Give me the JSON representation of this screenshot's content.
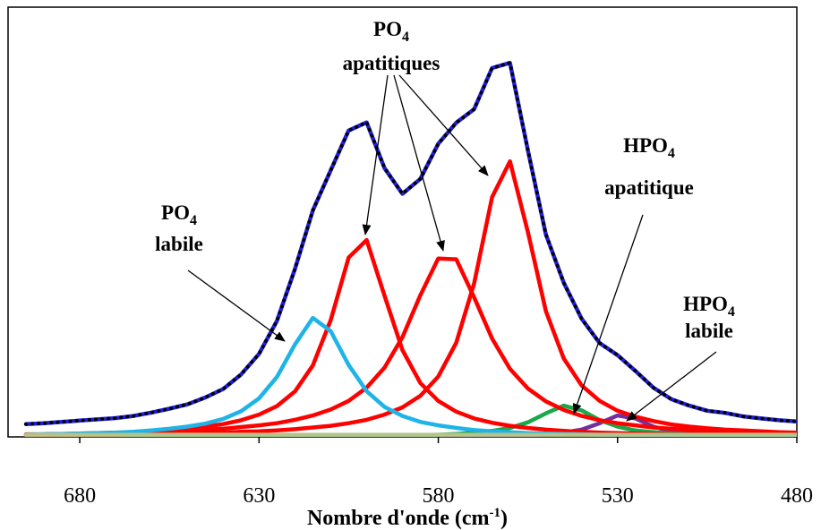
{
  "chart_data": {
    "type": "line",
    "x_label": {
      "text": "Nombre d'onde (cm",
      "sup": "-1",
      "end": ")"
    },
    "x": [
      695,
      690,
      685,
      680,
      675,
      670,
      665,
      660,
      655,
      650,
      645,
      640,
      635,
      630,
      625,
      620,
      615,
      610,
      605,
      600,
      595,
      590,
      585,
      580,
      575,
      570,
      565,
      560,
      555,
      550,
      545,
      540,
      535,
      530,
      525,
      520,
      515,
      510,
      505,
      500,
      495,
      490,
      485,
      480
    ],
    "xlim": [
      700,
      480
    ],
    "xticks": [
      680,
      630,
      580,
      530,
      480
    ],
    "ylim": [
      0,
      100
    ],
    "series": [
      {
        "color": "#7030a0",
        "values": [
          0.0,
          0.0,
          0.0,
          0.0,
          0.0,
          0.0,
          0.0,
          0.0,
          0.0,
          0.0,
          0.0,
          0.0,
          0.1,
          0.1,
          0.1,
          0.1,
          0.1,
          0.1,
          0.1,
          0.1,
          0.1,
          0.1,
          0.1,
          0.1,
          0.2,
          0.2,
          0.2,
          0.3,
          0.4,
          0.6,
          1.0,
          1.7,
          3.2,
          5.0,
          4.3,
          2.4,
          1.3,
          0.8,
          0.5,
          0.4,
          0.3,
          0.2,
          0.2,
          0.1
        ]
      },
      {
        "color": "#1aa84a",
        "values": [
          0.0,
          0.0,
          0.0,
          0.0,
          0.0,
          0.0,
          0.0,
          0.1,
          0.1,
          0.1,
          0.1,
          0.1,
          0.1,
          0.1,
          0.1,
          0.1,
          0.1,
          0.2,
          0.2,
          0.2,
          0.3,
          0.3,
          0.4,
          0.5,
          0.7,
          1.0,
          1.4,
          2.1,
          3.4,
          5.5,
          7.3,
          6.2,
          3.9,
          2.4,
          1.5,
          1.1,
          0.8,
          0.6,
          0.4,
          0.4,
          0.3,
          0.2,
          0.2,
          0.2
        ]
      },
      {
        "color": "#ff0000",
        "values": [
          0.5,
          0.6,
          0.7,
          0.8,
          0.9,
          1.0,
          1.1,
          1.3,
          1.6,
          1.9,
          2.4,
          3.0,
          3.9,
          5.2,
          7.2,
          10.6,
          16.7,
          27.3,
          41.9,
          46.0,
          33.0,
          20.3,
          12.6,
          8.4,
          5.9,
          4.3,
          3.3,
          2.6,
          2.1,
          1.7,
          1.4,
          1.2,
          1.0,
          0.9,
          0.8,
          0.7,
          0.6,
          0.6,
          0.5,
          0.5,
          0.4,
          0.4,
          0.3,
          0.3
        ]
      },
      {
        "color": "#ff0000",
        "values": [
          0.6,
          0.6,
          0.7,
          0.7,
          0.8,
          0.9,
          1.0,
          1.1,
          1.3,
          1.4,
          1.7,
          1.9,
          2.3,
          2.7,
          3.2,
          4.0,
          5.0,
          6.4,
          8.4,
          11.5,
          16.2,
          23.3,
          33.1,
          41.7,
          41.5,
          32.6,
          23.0,
          15.9,
          11.3,
          8.3,
          6.3,
          4.9,
          3.9,
          3.2,
          2.7,
          2.2,
          1.9,
          1.6,
          1.4,
          1.3,
          1.1,
          1.0,
          0.9,
          0.8
        ]
      },
      {
        "color": "#ff0000",
        "values": [
          0.4,
          0.4,
          0.4,
          0.5,
          0.5,
          0.5,
          0.6,
          0.7,
          0.7,
          0.8,
          0.9,
          1.0,
          1.2,
          1.3,
          1.5,
          1.8,
          2.2,
          2.6,
          3.2,
          4.0,
          5.2,
          6.9,
          9.6,
          14.1,
          22.0,
          35.9,
          56.0,
          64.4,
          47.8,
          29.4,
          18.3,
          12.0,
          8.4,
          6.1,
          4.7,
          3.7,
          2.9,
          2.4,
          2.0,
          1.7,
          1.5,
          1.3,
          1.1,
          1.0
        ]
      },
      {
        "color": "#1fb4e8",
        "values": [
          0.5,
          0.6,
          0.7,
          0.8,
          0.9,
          1.0,
          1.2,
          1.5,
          1.9,
          2.4,
          3.1,
          4.2,
          6.0,
          9.0,
          14.0,
          21.6,
          27.8,
          24.7,
          16.8,
          10.7,
          7.0,
          4.9,
          3.5,
          2.7,
          2.1,
          1.6,
          1.3,
          1.1,
          0.9,
          0.8,
          0.7,
          0.6,
          0.5,
          0.5,
          0.4,
          0.4,
          0.3,
          0.3,
          0.3,
          0.3,
          0.2,
          0.2,
          0.2,
          0.2
        ]
      },
      {
        "color": "#1f1fd8",
        "values": [
          3.0,
          3.2,
          3.5,
          3.8,
          4.1,
          4.4,
          4.9,
          5.7,
          6.6,
          7.6,
          9.2,
          11.2,
          14.6,
          19.4,
          27.1,
          39.2,
          52.9,
          62.3,
          71.6,
          73.5,
          62.8,
          56.8,
          60.3,
          68.5,
          73.4,
          76.6,
          86.2,
          87.4,
          66.9,
          47.3,
          36.0,
          27.6,
          21.9,
          19.1,
          15.4,
          11.5,
          8.8,
          7.3,
          6.1,
          5.6,
          4.8,
          4.3,
          3.9,
          3.6
        ]
      },
      {
        "color": "#000000",
        "dashed": true,
        "values": [
          3.0,
          3.2,
          3.5,
          3.8,
          4.1,
          4.4,
          4.9,
          5.7,
          6.6,
          7.6,
          9.2,
          11.2,
          14.6,
          19.4,
          27.1,
          39.2,
          52.9,
          62.3,
          71.6,
          73.5,
          62.8,
          56.8,
          60.3,
          68.5,
          73.4,
          76.6,
          86.2,
          87.4,
          66.9,
          47.3,
          36.0,
          27.6,
          21.9,
          19.1,
          15.4,
          11.5,
          8.8,
          7.3,
          6.1,
          5.6,
          4.8,
          4.3,
          3.9,
          3.6
        ]
      },
      {
        "color": "#b5c48a",
        "values": [
          0.5,
          0.5,
          0.5,
          0.5,
          0.5,
          0.5,
          0.5,
          0.5,
          0.5,
          0.5,
          0.5,
          0.5,
          0.5,
          0.5,
          0.5,
          0.5,
          0.5,
          0.5,
          0.5,
          0.5,
          0.5,
          0.5,
          0.5,
          0.5,
          0.5,
          0.5,
          0.5,
          0.5,
          0.5,
          0.5,
          0.5,
          0.5,
          0.5,
          0.5,
          0.5,
          0.5,
          0.5,
          0.5,
          0.5,
          0.5,
          0.5,
          0.5,
          0.5,
          0.5
        ]
      }
    ],
    "annotations": [
      {
        "formula": "PO",
        "index": "4",
        "text": "apatitiques"
      },
      {
        "formula": "PO",
        "index": "4",
        "text": "labile"
      },
      {
        "formula": "HPO",
        "index": "4",
        "text": "apatitique"
      },
      {
        "formula": "HPO",
        "index": "4",
        "text": "labile"
      }
    ]
  }
}
